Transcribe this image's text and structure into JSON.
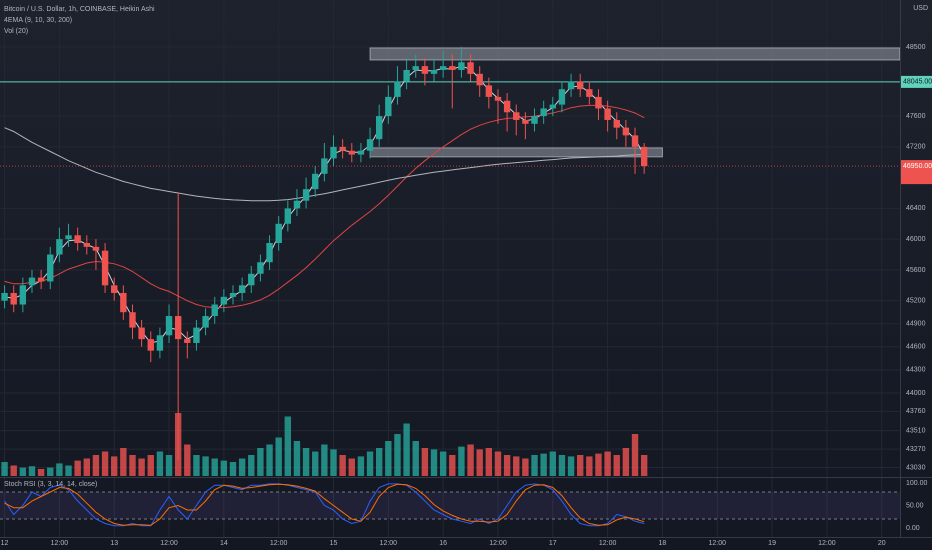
{
  "chart_data": {
    "type": "candlestick",
    "title": "Bitcoin / U.S. Dollar, 1h, COINBASE, Heikin Ashi",
    "indicator_label": "4EMA (9, 10, 30, 200)",
    "volume_label": "Vol (20)",
    "currency": "USD",
    "colors": {
      "up": "#26a69a",
      "down": "#ef5350"
    },
    "x": [
      0,
      2,
      4,
      6,
      8,
      10,
      12,
      14,
      16,
      18,
      20,
      22,
      24,
      26,
      28,
      30,
      32,
      34,
      36,
      38,
      40,
      42,
      44,
      46,
      48,
      50,
      52,
      54,
      56,
      58,
      60,
      62,
      64,
      66,
      68,
      70,
      72,
      74,
      76,
      78,
      80,
      82,
      84,
      86,
      88,
      90,
      92,
      94,
      96,
      98,
      100,
      102,
      104,
      106,
      108,
      110,
      112,
      114,
      116,
      118,
      120,
      122,
      124,
      126,
      128,
      130,
      132,
      134,
      136,
      138,
      140
    ],
    "open": [
      45200,
      45300,
      45150,
      45400,
      45500,
      45450,
      45800,
      46000,
      46050,
      45950,
      45900,
      45850,
      45400,
      45300,
      45050,
      44850,
      44700,
      44550,
      44750,
      45000,
      44700,
      44650,
      44850,
      45000,
      45150,
      45250,
      45300,
      45400,
      45550,
      45700,
      45950,
      46200,
      46400,
      46500,
      46650,
      46850,
      47050,
      47200,
      47150,
      47100,
      47150,
      47300,
      47600,
      47850,
      48050,
      48200,
      48250,
      48150,
      48200,
      48250,
      48200,
      48300,
      48150,
      48000,
      47850,
      47800,
      47650,
      47550,
      47500,
      47600,
      47700,
      47750,
      47950,
      48050,
      47950,
      47850,
      47700,
      47550,
      47450,
      47350,
      47200
    ],
    "high": [
      45400,
      45400,
      45500,
      45600,
      45600,
      45900,
      46150,
      46200,
      46150,
      46050,
      46000,
      45950,
      45500,
      45400,
      45150,
      44950,
      44800,
      44850,
      45150,
      46600,
      44800,
      44950,
      45100,
      45250,
      45350,
      45400,
      45500,
      45650,
      45800,
      46050,
      46300,
      46500,
      46650,
      46800,
      46950,
      47250,
      47350,
      47300,
      47250,
      47250,
      47450,
      47750,
      48000,
      48250,
      48350,
      48400,
      48350,
      48350,
      48450,
      48400,
      48500,
      48400,
      48250,
      48100,
      47950,
      47900,
      47750,
      47650,
      47700,
      47800,
      47850,
      48050,
      48150,
      48150,
      48050,
      47950,
      47800,
      47650,
      47550,
      47450,
      47250
    ],
    "low": [
      45100,
      45050,
      45050,
      45300,
      45350,
      45350,
      45700,
      45900,
      45850,
      45800,
      45600,
      45300,
      45200,
      44950,
      44700,
      44600,
      44400,
      44450,
      44650,
      43130,
      44450,
      44550,
      44750,
      44900,
      45050,
      45150,
      45200,
      45300,
      45450,
      45600,
      45850,
      46100,
      46300,
      46400,
      46550,
      46750,
      46950,
      47050,
      47000,
      47000,
      47050,
      47200,
      47500,
      47750,
      47950,
      48100,
      48000,
      48050,
      48100,
      47700,
      48100,
      48050,
      47850,
      47700,
      47500,
      47400,
      47350,
      47300,
      47400,
      47500,
      47600,
      47650,
      47850,
      47850,
      47750,
      47550,
      47400,
      47300,
      47200,
      46850,
      46850
    ],
    "close": [
      45300,
      45150,
      45400,
      45500,
      45450,
      45800,
      46000,
      46050,
      45950,
      45900,
      45850,
      45400,
      45300,
      45050,
      44850,
      44700,
      44550,
      44750,
      45000,
      44700,
      44650,
      44850,
      45000,
      45150,
      45250,
      45300,
      45400,
      45550,
      45700,
      45950,
      46200,
      46400,
      46500,
      46650,
      46850,
      47050,
      47200,
      47150,
      47100,
      47150,
      47300,
      47600,
      47850,
      48050,
      48200,
      48250,
      48150,
      48200,
      48250,
      48200,
      48300,
      48150,
      48000,
      47850,
      47800,
      47650,
      47550,
      47500,
      47600,
      47700,
      47750,
      47950,
      48050,
      47950,
      47850,
      47700,
      47550,
      47450,
      47350,
      47200,
      46950
    ],
    "emas": [
      {
        "color": "#d1d4dc",
        "values": [
          45250,
          45230,
          45280,
          45400,
          45460,
          45600,
          45850,
          45980,
          45990,
          45930,
          45880,
          45650,
          45400,
          45200,
          44980,
          44800,
          44650,
          44680,
          44850,
          44820,
          44700,
          44760,
          44900,
          45050,
          45180,
          45260,
          45330,
          45460,
          45600,
          45800,
          46050,
          46280,
          46430,
          46560,
          46740,
          46930,
          47110,
          47160,
          47130,
          47130,
          47220,
          47430,
          47690,
          47920,
          48100,
          48200,
          48190,
          48190,
          48220,
          48210,
          48250,
          48210,
          48080,
          47940,
          47830,
          47730,
          47620,
          47540,
          47560,
          47640,
          47710,
          47850,
          47980,
          47990,
          47910,
          47790,
          47650,
          47530,
          47420,
          47300,
          47100
        ]
      },
      {
        "color": "#e04444",
        "values": [
          45450,
          45420,
          45420,
          45440,
          45450,
          45490,
          45550,
          45610,
          45650,
          45690,
          45710,
          45700,
          45680,
          45640,
          45580,
          45500,
          45420,
          45360,
          45320,
          45260,
          45200,
          45150,
          45120,
          45110,
          45110,
          45120,
          45140,
          45170,
          45210,
          45270,
          45350,
          45440,
          45530,
          45630,
          45740,
          45860,
          45980,
          46080,
          46180,
          46270,
          46360,
          46460,
          46570,
          46690,
          46810,
          46920,
          47020,
          47110,
          47200,
          47280,
          47360,
          47430,
          47480,
          47520,
          47550,
          47570,
          47580,
          47590,
          47600,
          47620,
          47640,
          47670,
          47710,
          47730,
          47740,
          47740,
          47730,
          47710,
          47680,
          47640,
          47580
        ]
      },
      {
        "color": "#b2b5be",
        "values": [
          47450,
          47400,
          47330,
          47260,
          47200,
          47140,
          47080,
          47020,
          46970,
          46920,
          46870,
          46830,
          46790,
          46750,
          46720,
          46690,
          46660,
          46640,
          46620,
          46600,
          46580,
          46560,
          46545,
          46530,
          46520,
          46510,
          46505,
          46500,
          46500,
          46500,
          46505,
          46515,
          46530,
          46550,
          46570,
          46590,
          46615,
          46640,
          46665,
          46690,
          46715,
          46740,
          46765,
          46790,
          46810,
          46830,
          46850,
          46870,
          46885,
          46900,
          46915,
          46930,
          46945,
          46960,
          46975,
          46985,
          46995,
          47005,
          47015,
          47025,
          47035,
          47045,
          47055,
          47060,
          47065,
          47070,
          47075,
          47080,
          47090,
          47095,
          47100
        ]
      }
    ],
    "volume": [
      20,
      15,
      12,
      14,
      10,
      12,
      18,
      15,
      22,
      25,
      30,
      35,
      28,
      40,
      30,
      25,
      30,
      35,
      30,
      90,
      45,
      30,
      28,
      25,
      22,
      20,
      25,
      30,
      40,
      45,
      55,
      85,
      50,
      40,
      35,
      45,
      38,
      30,
      25,
      28,
      35,
      40,
      50,
      60,
      75,
      50,
      40,
      38,
      35,
      30,
      42,
      45,
      38,
      40,
      35,
      30,
      28,
      25,
      30,
      32,
      35,
      30,
      28,
      30,
      28,
      32,
      35,
      30,
      40,
      60,
      30
    ],
    "volume_lim": [
      0,
      100
    ],
    "zones": [
      {
        "top": 48487,
        "bottom": 48330,
        "x": [
          80,
          196
        ]
      },
      {
        "top": 47187,
        "bottom": 47070,
        "x": [
          80,
          144
        ]
      }
    ],
    "price_line": {
      "value": 48045,
      "label": "48045.00",
      "color": "#5fd3bc"
    },
    "last_price": {
      "value": 46950,
      "label": "46950.00"
    },
    "xlim": [
      -1,
      196
    ],
    "ylim": [
      42920,
      49110
    ],
    "yticks": [
      48500,
      47600,
      47200,
      46400,
      46000,
      45600,
      45200,
      44900,
      44600,
      44300,
      44000,
      43760,
      43510,
      43270,
      43030
    ],
    "xticks": [
      {
        "value": 0,
        "label": "12"
      },
      {
        "value": 12,
        "label": "12:00"
      },
      {
        "value": 24,
        "label": "13"
      },
      {
        "value": 36,
        "label": "12:00"
      },
      {
        "value": 48,
        "label": "14"
      },
      {
        "value": 60,
        "label": "12:00"
      },
      {
        "value": 72,
        "label": "15"
      },
      {
        "value": 84,
        "label": "12:00"
      },
      {
        "value": 96,
        "label": "16"
      },
      {
        "value": 108,
        "label": "12:00"
      },
      {
        "value": 120,
        "label": "17"
      },
      {
        "value": 132,
        "label": "12:00"
      },
      {
        "value": 144,
        "label": "18"
      },
      {
        "value": 156,
        "label": "12:00"
      },
      {
        "value": 168,
        "label": "19"
      },
      {
        "value": 180,
        "label": "12:00"
      },
      {
        "value": 192,
        "label": "20"
      }
    ],
    "stoch": {
      "label": "Stoch RSI (3, 3, 14, 14, close)",
      "k": {
        "color": "#2962ff",
        "values": [
          60,
          30,
          50,
          80,
          70,
          90,
          95,
          85,
          60,
          40,
          20,
          10,
          5,
          5,
          10,
          5,
          5,
          40,
          70,
          40,
          20,
          50,
          80,
          95,
          95,
          90,
          85,
          95,
          95,
          98,
          98,
          95,
          90,
          85,
          80,
          50,
          40,
          20,
          10,
          15,
          60,
          90,
          98,
          98,
          95,
          80,
          60,
          40,
          30,
          20,
          15,
          10,
          20,
          10,
          20,
          50,
          80,
          95,
          98,
          95,
          85,
          60,
          30,
          10,
          5,
          5,
          10,
          30,
          25,
          15,
          10
        ]
      },
      "d": {
        "color": "#ff6d00",
        "values": [
          55,
          45,
          45,
          60,
          70,
          80,
          90,
          88,
          75,
          55,
          35,
          20,
          10,
          6,
          7,
          7,
          6,
          20,
          45,
          50,
          40,
          40,
          60,
          85,
          95,
          93,
          88,
          90,
          93,
          96,
          97,
          96,
          93,
          88,
          82,
          65,
          50,
          35,
          20,
          15,
          35,
          70,
          90,
          97,
          96,
          88,
          72,
          52,
          38,
          28,
          20,
          15,
          15,
          13,
          15,
          30,
          60,
          85,
          95,
          96,
          90,
          72,
          45,
          22,
          10,
          6,
          7,
          18,
          24,
          20,
          14
        ]
      },
      "ylim": [
        -20,
        111
      ],
      "bands": [
        80,
        20
      ],
      "yticks": [
        {
          "value": 100,
          "label": "100.00"
        },
        {
          "value": 50,
          "label": "50.00"
        },
        {
          "value": 0,
          "label": "0.00"
        }
      ]
    }
  }
}
